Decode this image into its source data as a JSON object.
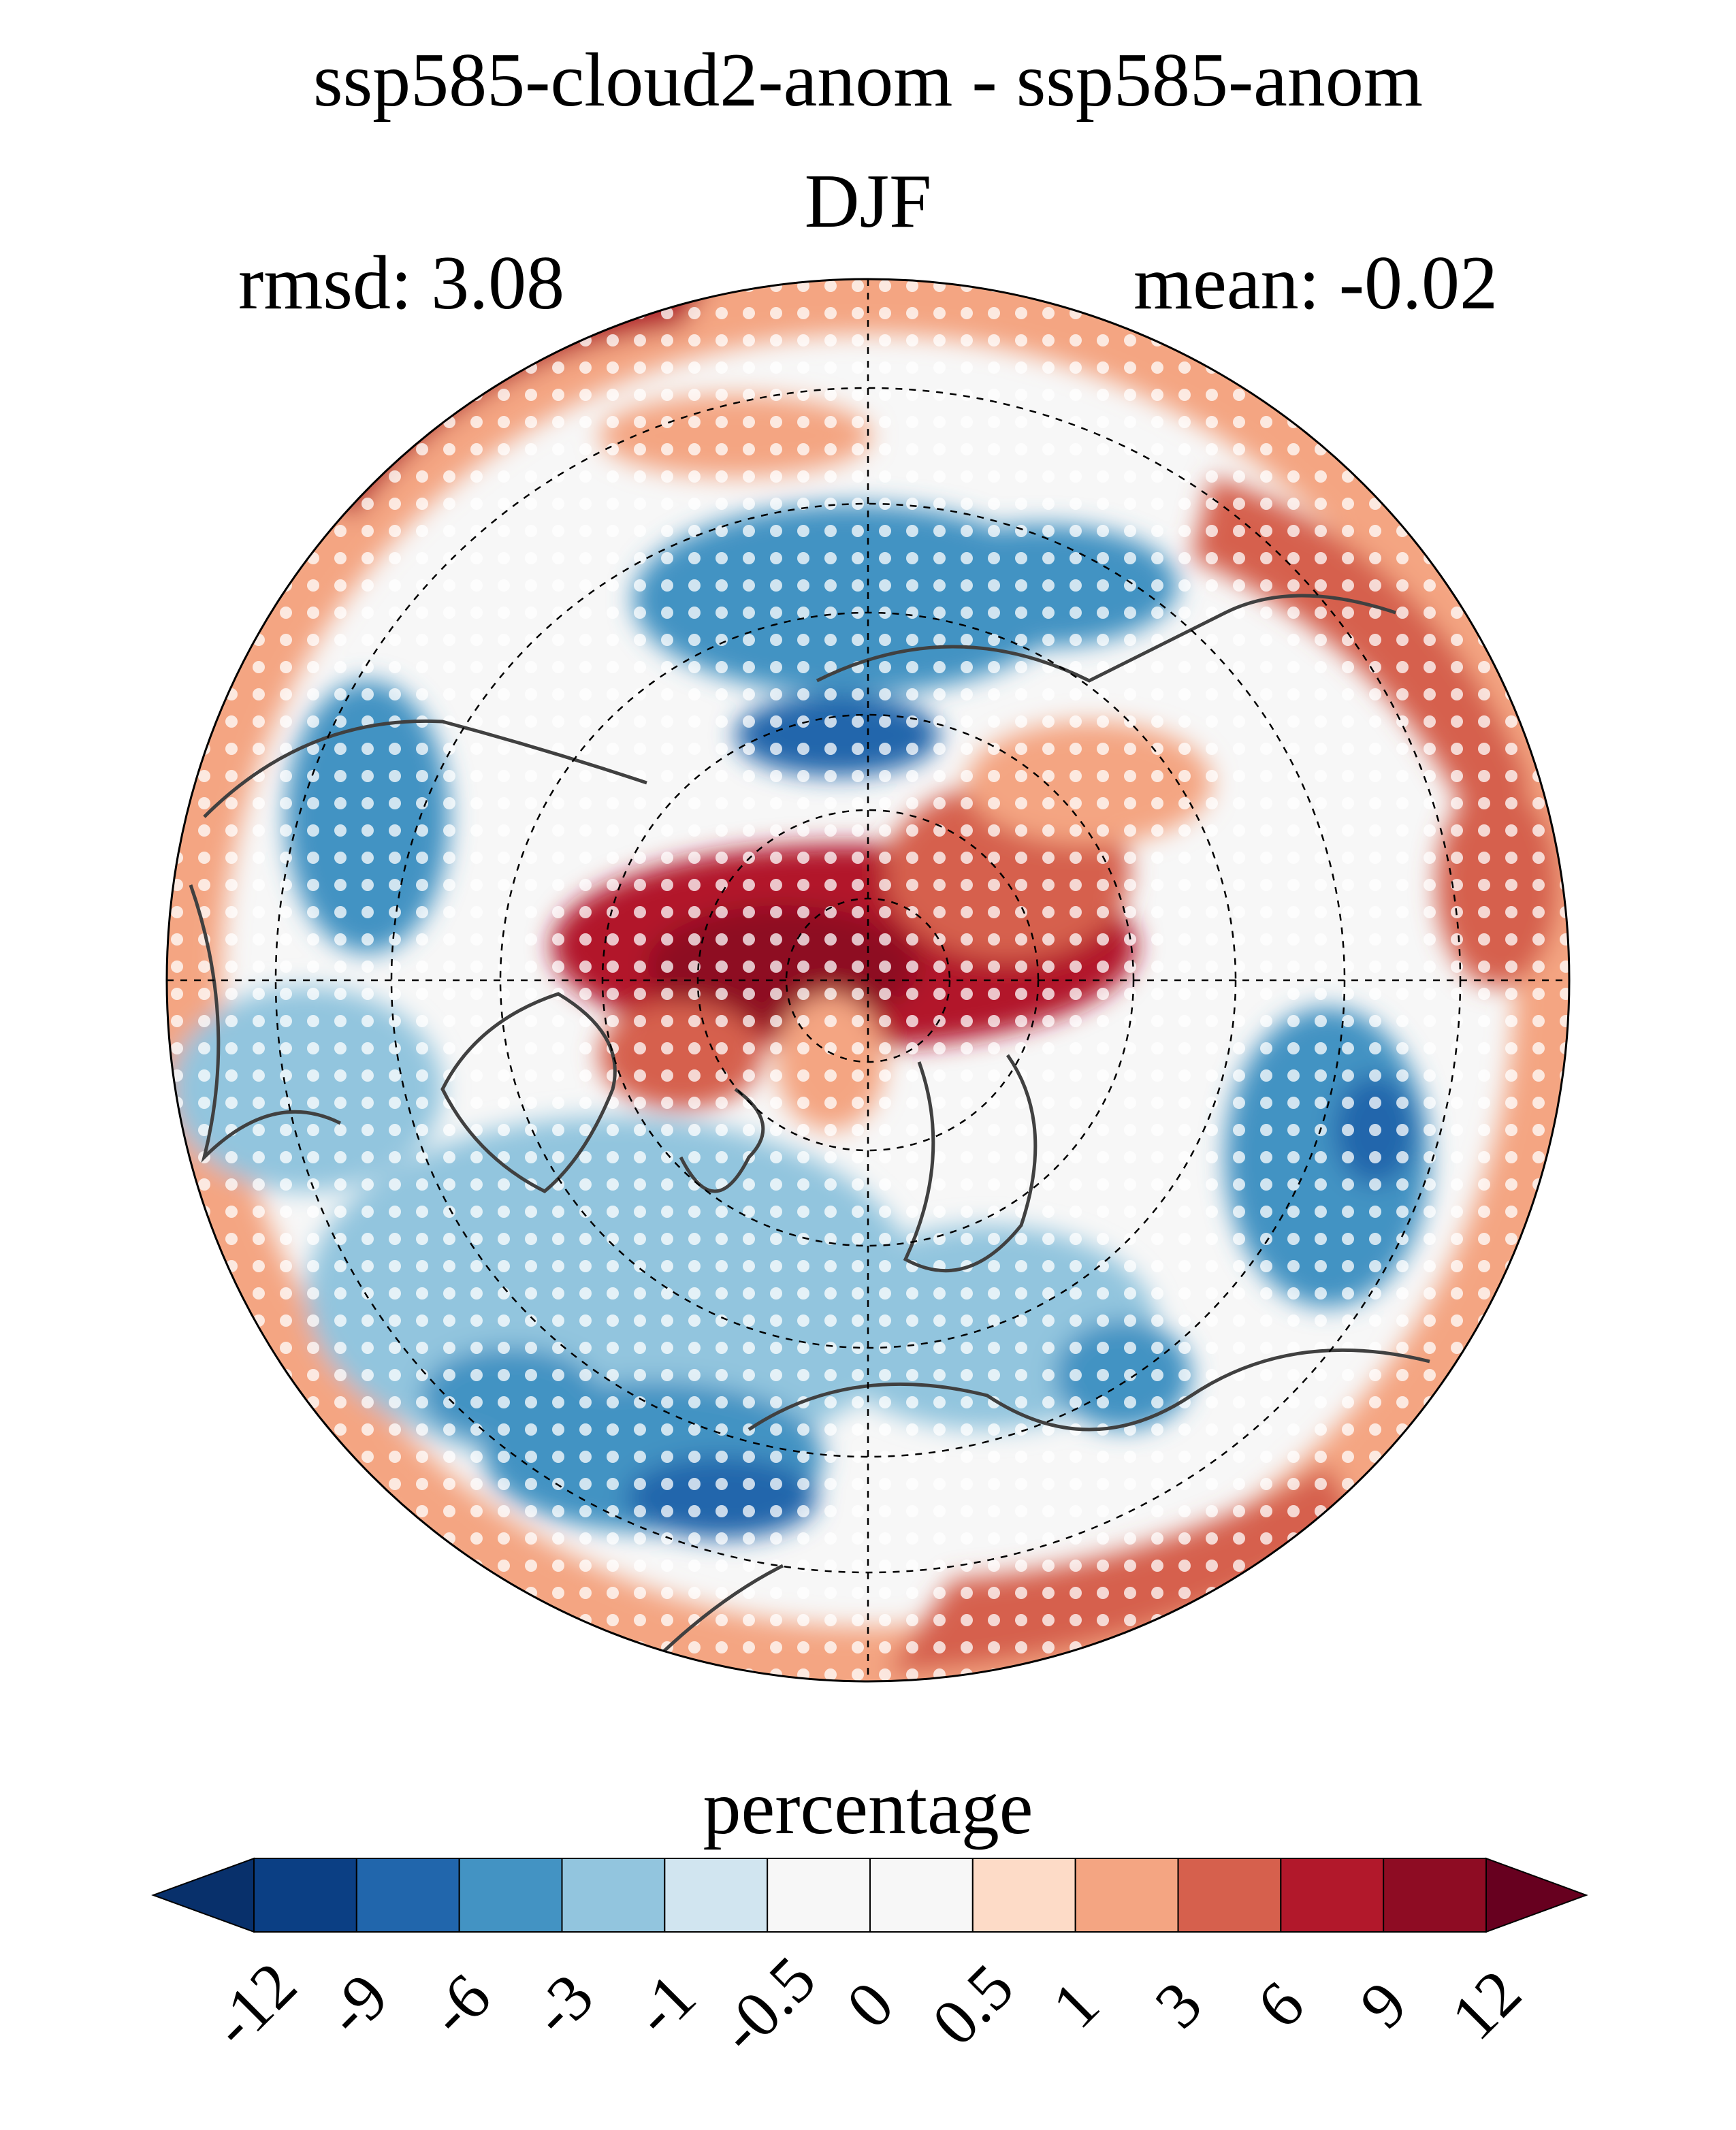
{
  "title": "ssp585-cloud2-anom - ssp585-anom",
  "subtitle": "DJF",
  "rmsd_label": "rmsd: 3.08",
  "mean_label": "mean: -0.02",
  "colorbar": {
    "label": "percentage",
    "ticks": [
      "-12",
      "-9",
      "-6",
      "-3",
      "-1",
      "-0.5",
      "0",
      "0.5",
      "1",
      "3",
      "6",
      "9",
      "12"
    ],
    "colors": [
      "#08306b",
      "#0b3f84",
      "#2166ac",
      "#4393c3",
      "#92c5de",
      "#d1e5f0",
      "#f7f7f7",
      "#f7f7f7",
      "#fddbc7",
      "#f4a582",
      "#d6604d",
      "#b2182b",
      "#8e0c23",
      "#67001f"
    ]
  },
  "map": {
    "projection": "north-polar-stereographic",
    "stippling_color": "#ffffff",
    "coastline_color": "#404040"
  }
}
